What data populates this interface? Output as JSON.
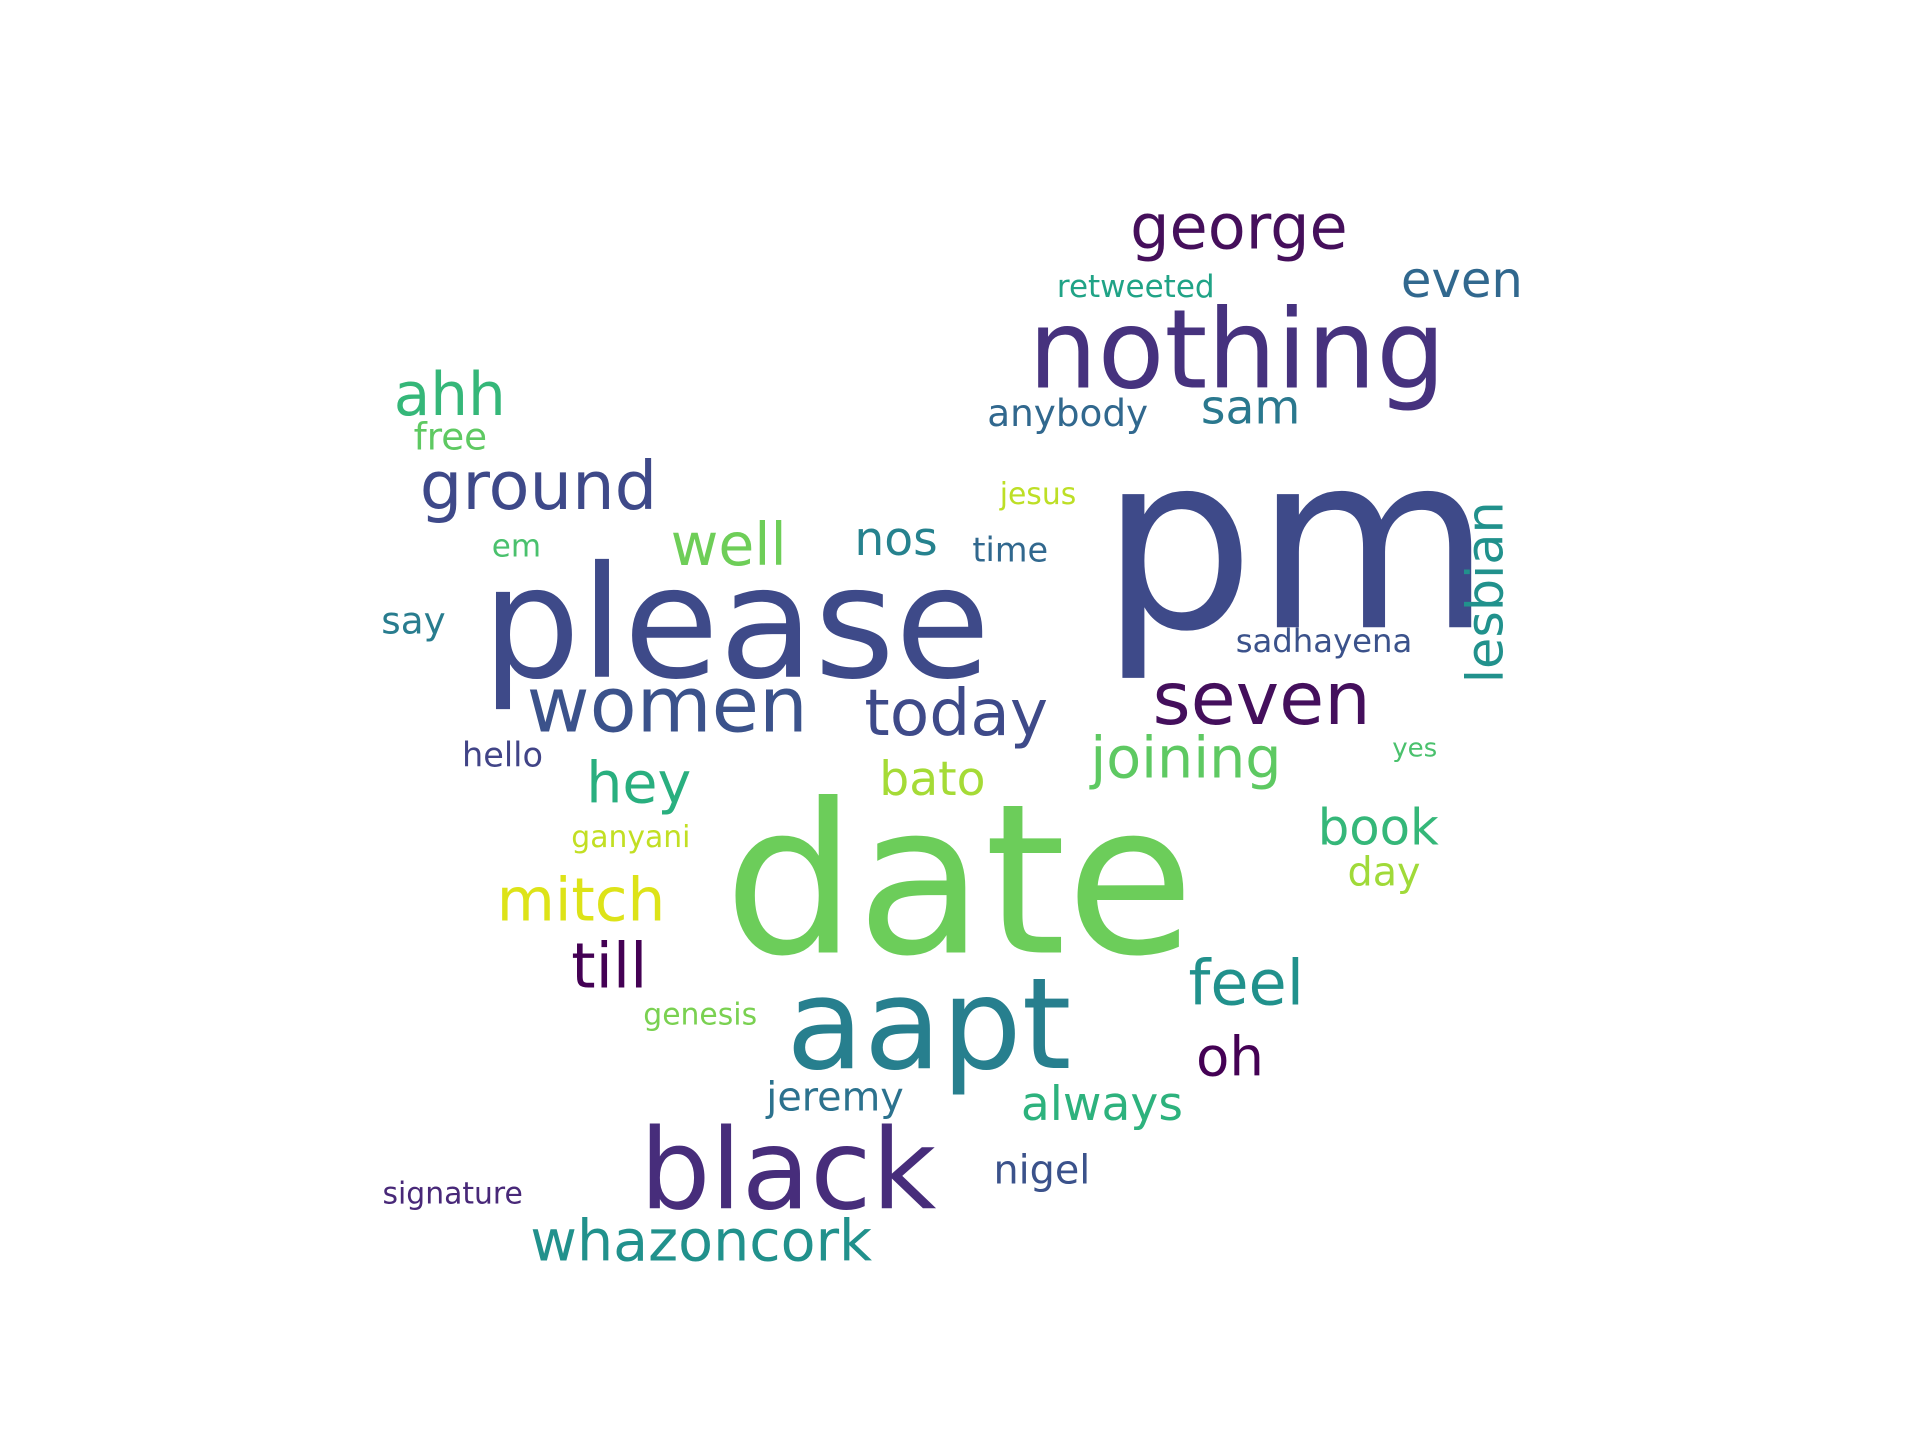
{
  "words": [
    {
      "text": "pm",
      "color": "#3e4a89"
    },
    {
      "text": "date",
      "color": "#6ccd5a"
    },
    {
      "text": "please",
      "color": "#3e4a89"
    },
    {
      "text": "aapt",
      "color": "#277f8e"
    },
    {
      "text": "nothing",
      "color": "#46327e"
    },
    {
      "text": "black",
      "color": "#472d7b"
    },
    {
      "text": "women",
      "color": "#3b528b"
    },
    {
      "text": "seven",
      "color": "#440f5c"
    },
    {
      "text": "ground",
      "color": "#3e4989"
    },
    {
      "text": "george",
      "color": "#450f5b"
    },
    {
      "text": "whazoncork",
      "color": "#21918c"
    },
    {
      "text": "today",
      "color": "#3e4a89"
    },
    {
      "text": "joining",
      "color": "#5ec962"
    },
    {
      "text": "mitch",
      "color": "#dde318"
    },
    {
      "text": "till",
      "color": "#440154"
    },
    {
      "text": "hey",
      "color": "#29af7f"
    },
    {
      "text": "well",
      "color": "#6ece58"
    },
    {
      "text": "feel",
      "color": "#21918c"
    },
    {
      "text": "oh",
      "color": "#440154"
    },
    {
      "text": "ahh",
      "color": "#35b779"
    },
    {
      "text": "book",
      "color": "#35b779"
    },
    {
      "text": "lesbian",
      "color": "#21918c"
    },
    {
      "text": "even",
      "color": "#31688e"
    },
    {
      "text": "always",
      "color": "#2db27d"
    },
    {
      "text": "bato",
      "color": "#a5db36"
    },
    {
      "text": "nos",
      "color": "#26828e"
    },
    {
      "text": "sam",
      "color": "#2a788e"
    },
    {
      "text": "nigel",
      "color": "#3b528b"
    },
    {
      "text": "jeremy",
      "color": "#2c728e"
    },
    {
      "text": "anybody",
      "color": "#31688e"
    },
    {
      "text": "free",
      "color": "#5ec962"
    },
    {
      "text": "day",
      "color": "#a0da39"
    },
    {
      "text": "say",
      "color": "#287c8e"
    },
    {
      "text": "time",
      "color": "#31688e"
    },
    {
      "text": "em",
      "color": "#4ac16d"
    },
    {
      "text": "hello",
      "color": "#414487"
    },
    {
      "text": "sadhayena",
      "color": "#3b528b"
    },
    {
      "text": "retweeted",
      "color": "#20a386"
    },
    {
      "text": "jesus",
      "color": "#bddf26"
    },
    {
      "text": "ganyani",
      "color": "#c2df23"
    },
    {
      "text": "yes",
      "color": "#4ac16d"
    },
    {
      "text": "genesis",
      "color": "#7ad151"
    },
    {
      "text": "signature",
      "color": "#482878"
    }
  ]
}
